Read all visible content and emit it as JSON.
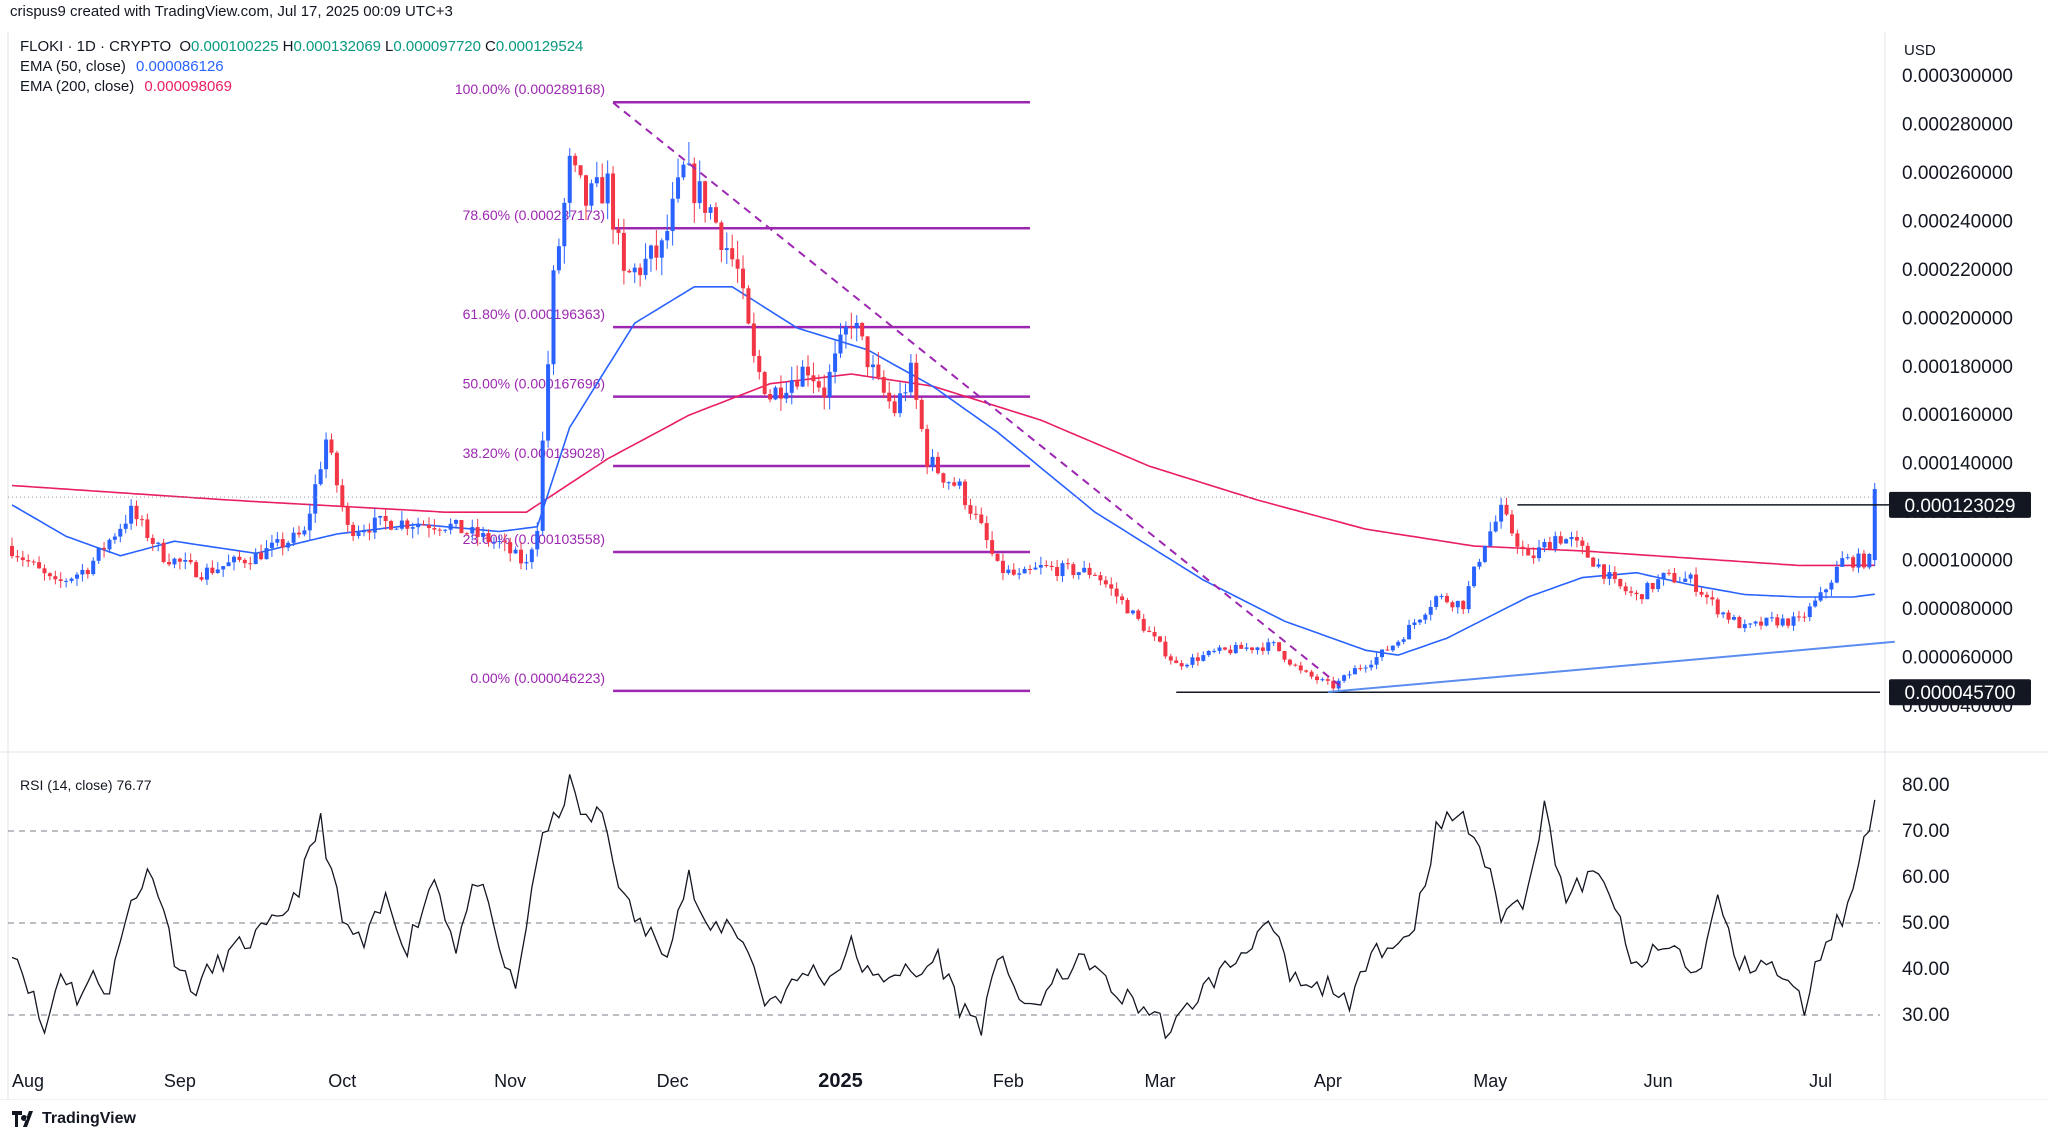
{
  "header": {
    "credit": "crispus9 created with TradingView.com, Jul 17, 2025 00:09 UTC+3",
    "symbol": "FLOKI · 1D · CRYPTO",
    "ohlc": [
      {
        "k": "O",
        "v": "0.000100225"
      },
      {
        "k": "H",
        "v": "0.000132069"
      },
      {
        "k": "L",
        "v": "0.000097720"
      },
      {
        "k": "C",
        "v": "0.000129524"
      }
    ],
    "ema50_label": "EMA (50, close)",
    "ema50_value": "0.000086126",
    "ema200_label": "EMA (200, close)",
    "ema200_value": "0.000098069"
  },
  "price_axis": {
    "currency": "USD",
    "ticks": [
      "0.000300000",
      "0.000280000",
      "0.000260000",
      "0.000240000",
      "0.000220000",
      "0.000200000",
      "0.000180000",
      "0.000160000",
      "0.000140000",
      "0.000120000",
      "0.000100000",
      "0.000080000",
      "0.000060000",
      "0.000040000"
    ],
    "tick_values": [
      0.0003,
      0.00028,
      0.00026,
      0.00024,
      0.00022,
      0.0002,
      0.00018,
      0.00016,
      0.00014,
      0.00012,
      0.0001,
      8e-05,
      6e-05,
      4e-05
    ],
    "label_resistance": "0.000123029",
    "label_support": "0.000045700"
  },
  "fib_levels": [
    {
      "label": "100.00% (0.000289168)",
      "value": 0.000289168
    },
    {
      "label": "78.60% (0.000237173)",
      "value": 0.000237173
    },
    {
      "label": "61.80% (0.000196363)",
      "value": 0.000196363
    },
    {
      "label": "50.00% (0.000167696)",
      "value": 0.000167696
    },
    {
      "label": "38.20% (0.000139028)",
      "value": 0.000139028
    },
    {
      "label": "23.60% (0.000103558)",
      "value": 0.000103558
    },
    {
      "label": "0.00% (0.000046223)",
      "value": 4.6223e-05
    }
  ],
  "time_axis": {
    "labels": [
      "Aug",
      "Sep",
      "Oct",
      "Nov",
      "Dec",
      "2025",
      "Feb",
      "Mar",
      "Apr",
      "May",
      "Jun",
      "Jul"
    ],
    "label_days": [
      0,
      31,
      61,
      92,
      122,
      153,
      184,
      212,
      243,
      273,
      304,
      334
    ],
    "bold": "2025"
  },
  "rsi": {
    "label": "RSI (14, close)",
    "value": "76.77",
    "ticks": [
      "80.00",
      "70.00",
      "60.00",
      "50.00",
      "40.00",
      "30.00"
    ],
    "tick_values": [
      80,
      70,
      60,
      50,
      40,
      30
    ],
    "dashed_levels": [
      70,
      50,
      30
    ]
  },
  "colors": {
    "up": "#2962ff",
    "down": "#f23645",
    "ema50": "#2962ff",
    "ema200": "#e91e63",
    "fib": "#9c27b0",
    "rsi": "#131722",
    "text": "#131722"
  },
  "chart_data": {
    "type": "candlestick",
    "start_date": "2024-08-01",
    "ylim": [
      3.5e-05,
      0.000305
    ],
    "rsi_ylim": [
      25,
      82
    ],
    "anchors_close": [
      [
        0,
        0.000105
      ],
      [
        8,
        9e-05
      ],
      [
        14,
        9.7e-05
      ],
      [
        22,
        0.00012
      ],
      [
        28,
        0.000102
      ],
      [
        35,
        9.5e-05
      ],
      [
        45,
        0.000102
      ],
      [
        54,
        0.000111
      ],
      [
        58,
        0.00015
      ],
      [
        62,
        0.000113
      ],
      [
        70,
        0.000116
      ],
      [
        80,
        0.000115
      ],
      [
        90,
        0.000107
      ],
      [
        95,
        9.8e-05
      ],
      [
        97,
        0.000115
      ],
      [
        100,
        0.000215
      ],
      [
        103,
        0.000262
      ],
      [
        106,
        0.000248
      ],
      [
        110,
        0.000255
      ],
      [
        113,
        0.000216
      ],
      [
        120,
        0.000228
      ],
      [
        124,
        0.00026
      ],
      [
        129,
        0.000245
      ],
      [
        134,
        0.000219
      ],
      [
        137,
        0.000182
      ],
      [
        140,
        0.000168
      ],
      [
        143,
        0.000174
      ],
      [
        147,
        0.00018
      ],
      [
        150,
        0.00017
      ],
      [
        155,
        0.0002
      ],
      [
        160,
        0.000172
      ],
      [
        163,
        0.000162
      ],
      [
        166,
        0.000177
      ],
      [
        169,
        0.000142
      ],
      [
        172,
        0.000135
      ],
      [
        175,
        0.00013
      ],
      [
        179,
        0.000113
      ],
      [
        182,
        9.7e-05
      ],
      [
        186,
        9.3e-05
      ],
      [
        190,
        9.7e-05
      ],
      [
        200,
        9.5e-05
      ],
      [
        205,
        8.3e-05
      ],
      [
        210,
        7e-05
      ],
      [
        215,
        5.7e-05
      ],
      [
        222,
        6.2e-05
      ],
      [
        228,
        6.4e-05
      ],
      [
        233,
        6.5e-05
      ],
      [
        238,
        5.4e-05
      ],
      [
        244,
        4.8e-05
      ],
      [
        248,
        5.5e-05
      ],
      [
        252,
        6e-05
      ],
      [
        256,
        6.7e-05
      ],
      [
        263,
        8.5e-05
      ],
      [
        268,
        8.2e-05
      ],
      [
        272,
        0.000108
      ],
      [
        275,
        0.00012
      ],
      [
        280,
        0.0001
      ],
      [
        285,
        0.00011
      ],
      [
        288,
        0.000108
      ],
      [
        293,
        9.8e-05
      ],
      [
        296,
        9e-05
      ],
      [
        300,
        8.5e-05
      ],
      [
        305,
        9.3e-05
      ],
      [
        310,
        9.2e-05
      ],
      [
        315,
        8e-05
      ],
      [
        320,
        7.2e-05
      ],
      [
        325,
        7.5e-05
      ],
      [
        330,
        7.5e-05
      ],
      [
        334,
        8.5e-05
      ],
      [
        338,
        0.0001
      ],
      [
        342,
        0.0001
      ],
      [
        343,
        0.0001
      ],
      [
        344,
        0.000129524
      ]
    ],
    "anchors_ema50": [
      [
        0,
        0.000123
      ],
      [
        10,
        0.00011
      ],
      [
        20,
        0.000102
      ],
      [
        30,
        0.000108
      ],
      [
        45,
        0.000103
      ],
      [
        60,
        0.000111
      ],
      [
        75,
        0.000115
      ],
      [
        90,
        0.000112
      ],
      [
        97,
        0.000114
      ],
      [
        103,
        0.000155
      ],
      [
        115,
        0.000198
      ],
      [
        126,
        0.000213
      ],
      [
        133,
        0.000213
      ],
      [
        145,
        0.000196
      ],
      [
        158,
        0.000187
      ],
      [
        170,
        0.000172
      ],
      [
        182,
        0.000153
      ],
      [
        200,
        0.00012
      ],
      [
        220,
        9.2e-05
      ],
      [
        235,
        7.5e-05
      ],
      [
        250,
        6.3e-05
      ],
      [
        256,
        6.1e-05
      ],
      [
        265,
        6.8e-05
      ],
      [
        280,
        8.5e-05
      ],
      [
        290,
        9.3e-05
      ],
      [
        300,
        9.5e-05
      ],
      [
        310,
        9e-05
      ],
      [
        320,
        8.6e-05
      ],
      [
        330,
        8.5e-05
      ],
      [
        340,
        8.5e-05
      ],
      [
        344,
        8.6126e-05
      ]
    ],
    "anchors_ema200": [
      [
        0,
        0.000131
      ],
      [
        40,
        0.000125
      ],
      [
        80,
        0.00012
      ],
      [
        95,
        0.00012
      ],
      [
        110,
        0.000142
      ],
      [
        125,
        0.00016
      ],
      [
        140,
        0.000173
      ],
      [
        155,
        0.000177
      ],
      [
        170,
        0.000172
      ],
      [
        190,
        0.000158
      ],
      [
        210,
        0.000139
      ],
      [
        230,
        0.000125
      ],
      [
        250,
        0.000113
      ],
      [
        270,
        0.000106
      ],
      [
        290,
        0.000104
      ],
      [
        310,
        0.000101
      ],
      [
        330,
        9.8e-05
      ],
      [
        344,
        9.8069e-05
      ]
    ],
    "anchors_rsi": [
      [
        0,
        45
      ],
      [
        3,
        37
      ],
      [
        6,
        26
      ],
      [
        9,
        40
      ],
      [
        12,
        34
      ],
      [
        15,
        38
      ],
      [
        18,
        36
      ],
      [
        22,
        55
      ],
      [
        26,
        62
      ],
      [
        30,
        43
      ],
      [
        33,
        35
      ],
      [
        37,
        40
      ],
      [
        41,
        44
      ],
      [
        45,
        47
      ],
      [
        49,
        50
      ],
      [
        53,
        58
      ],
      [
        57,
        72
      ],
      [
        61,
        50
      ],
      [
        65,
        45
      ],
      [
        69,
        55
      ],
      [
        73,
        45
      ],
      [
        78,
        60
      ],
      [
        82,
        45
      ],
      [
        86,
        60
      ],
      [
        90,
        44
      ],
      [
        93,
        35
      ],
      [
        97,
        65
      ],
      [
        100,
        72
      ],
      [
        103,
        80
      ],
      [
        106,
        72
      ],
      [
        109,
        74
      ],
      [
        113,
        55
      ],
      [
        117,
        48
      ],
      [
        121,
        45
      ],
      [
        125,
        60
      ],
      [
        128,
        48
      ],
      [
        132,
        50
      ],
      [
        135,
        47
      ],
      [
        139,
        33
      ],
      [
        143,
        35
      ],
      [
        147,
        40
      ],
      [
        151,
        38
      ],
      [
        155,
        45
      ],
      [
        159,
        37
      ],
      [
        163,
        40
      ],
      [
        167,
        38
      ],
      [
        171,
        43
      ],
      [
        175,
        32
      ],
      [
        179,
        28
      ],
      [
        183,
        44
      ],
      [
        187,
        30
      ],
      [
        191,
        35
      ],
      [
        195,
        40
      ],
      [
        199,
        42
      ],
      [
        203,
        35
      ],
      [
        207,
        33
      ],
      [
        211,
        30
      ],
      [
        214,
        26
      ],
      [
        218,
        33
      ],
      [
        222,
        38
      ],
      [
        226,
        42
      ],
      [
        230,
        48
      ],
      [
        233,
        48
      ],
      [
        236,
        38
      ],
      [
        240,
        35
      ],
      [
        244,
        37
      ],
      [
        247,
        30
      ],
      [
        251,
        46
      ],
      [
        255,
        44
      ],
      [
        259,
        50
      ],
      [
        263,
        70
      ],
      [
        267,
        74
      ],
      [
        271,
        67
      ],
      [
        275,
        52
      ],
      [
        279,
        55
      ],
      [
        283,
        75
      ],
      [
        287,
        55
      ],
      [
        291,
        60
      ],
      [
        295,
        58
      ],
      [
        299,
        40
      ],
      [
        303,
        43
      ],
      [
        307,
        45
      ],
      [
        311,
        38
      ],
      [
        315,
        55
      ],
      [
        319,
        40
      ],
      [
        323,
        42
      ],
      [
        327,
        38
      ],
      [
        331,
        32
      ],
      [
        335,
        47
      ],
      [
        339,
        53
      ],
      [
        342,
        68
      ],
      [
        344,
        76.77
      ]
    ],
    "resistance_value": 0.000123029,
    "support_value": 4.57e-05,
    "trend_line": [
      [
        243,
        4.58e-05
      ],
      [
        344,
        6.65e-05
      ]
    ],
    "dashed_downtrend": [
      [
        111,
        0.000289
      ],
      [
        246,
        4.7e-05
      ]
    ]
  }
}
